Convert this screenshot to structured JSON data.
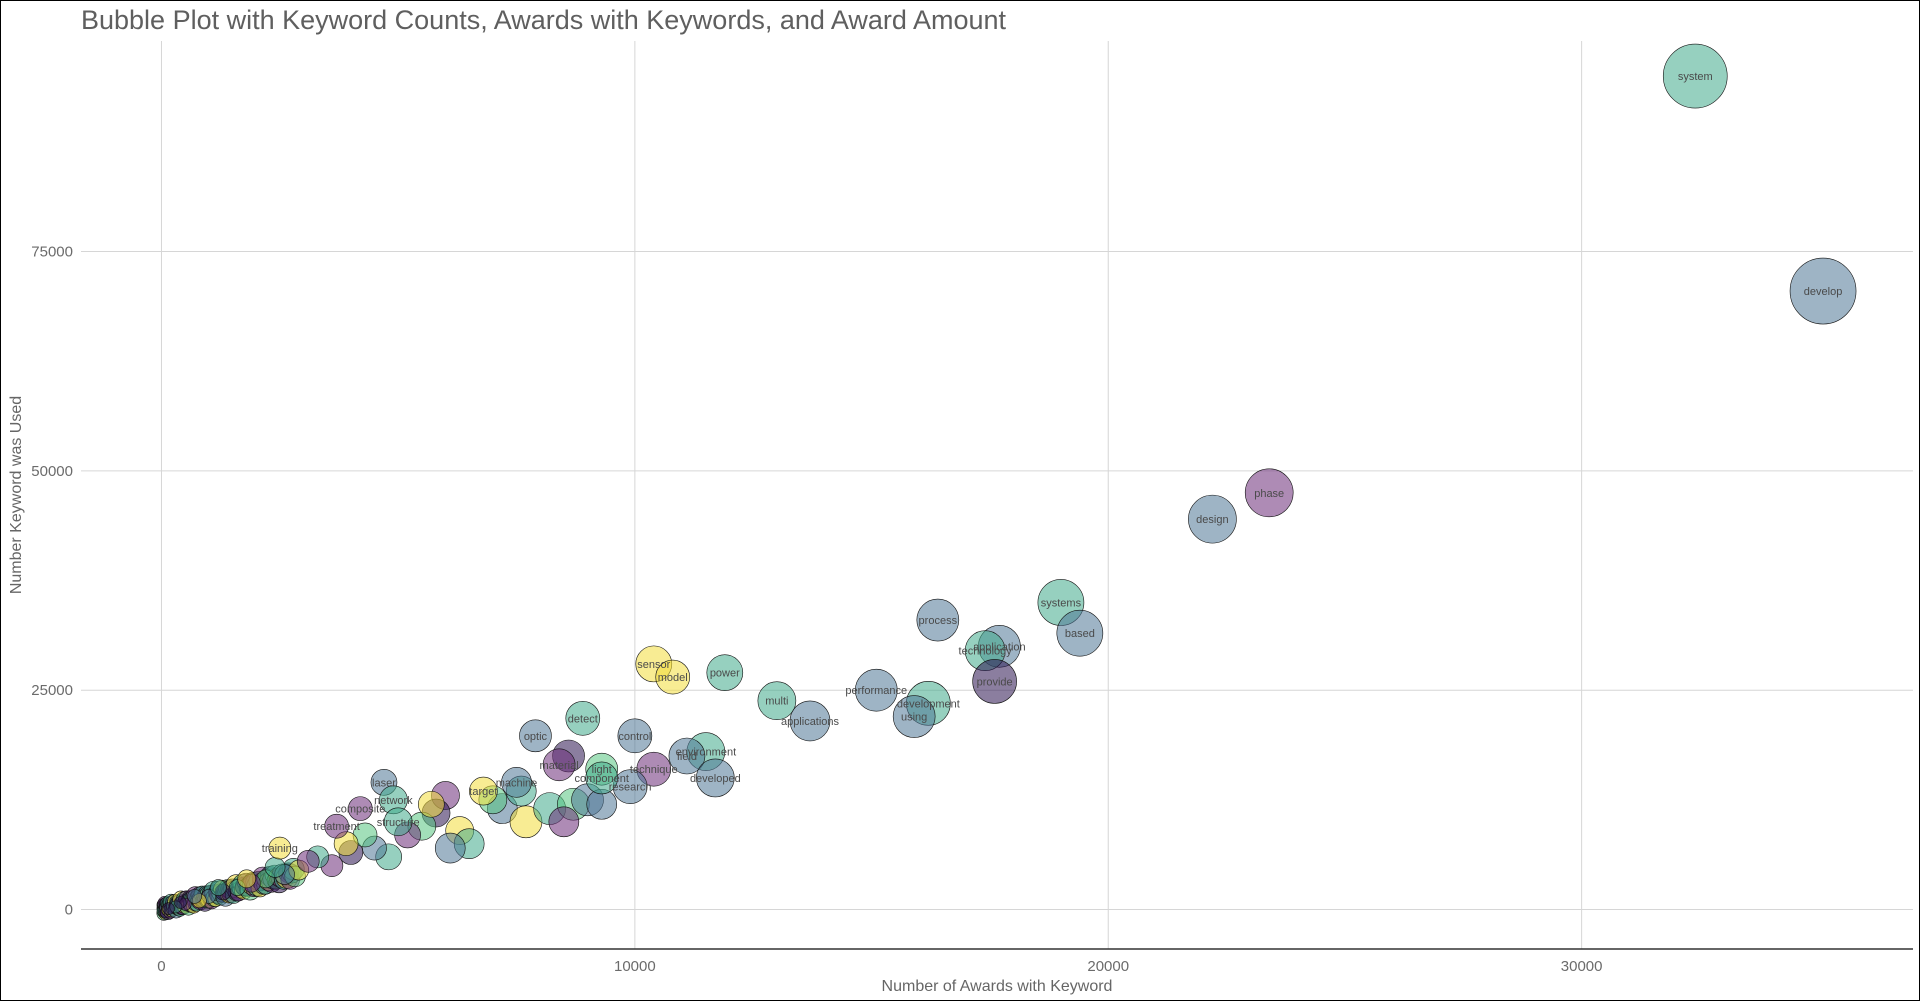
{
  "chart_data": {
    "type": "scatter",
    "title": "Bubble Plot with Keyword Counts, Awards with Keywords, and Award Amount",
    "xlabel": "Number of Awards with Keyword",
    "ylabel": "Number Keyword was Used",
    "xlim": [
      -1700,
      37000
    ],
    "ylim": [
      -4500,
      99000
    ],
    "xticks": [
      0,
      10000,
      20000,
      30000
    ],
    "yticks": [
      0,
      25000,
      50000,
      75000
    ],
    "grid": true,
    "legend": "none",
    "colors": {
      "purple": "#6b2c79",
      "blue": "#4f7695",
      "teal": "#3faa8a",
      "green": "#56c47f",
      "yellow": "#f2dd3b",
      "dark": "#2b1450"
    },
    "labeled_points": [
      {
        "label": "system",
        "x": 32400,
        "y": 95000,
        "size": 32,
        "color": "teal"
      },
      {
        "label": "develop",
        "x": 35100,
        "y": 70500,
        "size": 33,
        "color": "blue"
      },
      {
        "label": "phase",
        "x": 23400,
        "y": 47500,
        "size": 24,
        "color": "purple"
      },
      {
        "label": "design",
        "x": 22200,
        "y": 44500,
        "size": 24,
        "color": "blue"
      },
      {
        "label": "systems",
        "x": 19000,
        "y": 35000,
        "size": 23,
        "color": "teal"
      },
      {
        "label": "based",
        "x": 19400,
        "y": 31500,
        "size": 23,
        "color": "blue"
      },
      {
        "label": "process",
        "x": 16400,
        "y": 33000,
        "size": 21,
        "color": "blue"
      },
      {
        "label": "application",
        "x": 17700,
        "y": 30000,
        "size": 21,
        "color": "blue"
      },
      {
        "label": "technology",
        "x": 17400,
        "y": 29500,
        "size": 20,
        "color": "teal"
      },
      {
        "label": "provide",
        "x": 17600,
        "y": 26000,
        "size": 22,
        "color": "dark"
      },
      {
        "label": "performance",
        "x": 15100,
        "y": 25000,
        "size": 21,
        "color": "blue"
      },
      {
        "label": "development",
        "x": 16200,
        "y": 23500,
        "size": 22,
        "color": "teal"
      },
      {
        "label": "using",
        "x": 15900,
        "y": 22000,
        "size": 21,
        "color": "blue"
      },
      {
        "label": "sensor",
        "x": 10400,
        "y": 28000,
        "size": 18,
        "color": "yellow"
      },
      {
        "label": "model",
        "x": 10800,
        "y": 26500,
        "size": 17,
        "color": "yellow"
      },
      {
        "label": "power",
        "x": 11900,
        "y": 27000,
        "size": 18,
        "color": "teal"
      },
      {
        "label": "multi",
        "x": 13000,
        "y": 23800,
        "size": 19,
        "color": "teal"
      },
      {
        "label": "applications",
        "x": 13700,
        "y": 21500,
        "size": 20,
        "color": "blue"
      },
      {
        "label": "detect",
        "x": 8900,
        "y": 21800,
        "size": 17,
        "color": "teal"
      },
      {
        "label": "optic",
        "x": 7900,
        "y": 19800,
        "size": 16,
        "color": "blue"
      },
      {
        "label": "control",
        "x": 10000,
        "y": 19800,
        "size": 17,
        "color": "blue"
      },
      {
        "label": "environment",
        "x": 11500,
        "y": 18000,
        "size": 19,
        "color": "teal"
      },
      {
        "label": "field",
        "x": 11100,
        "y": 17500,
        "size": 18,
        "color": "blue"
      },
      {
        "label": "developed",
        "x": 11700,
        "y": 15000,
        "size": 19,
        "color": "blue"
      },
      {
        "label": "technique",
        "x": 10400,
        "y": 16000,
        "size": 17,
        "color": "purple"
      },
      {
        "label": "research",
        "x": 9900,
        "y": 14000,
        "size": 17,
        "color": "blue"
      },
      {
        "label": "light",
        "x": 9300,
        "y": 16000,
        "size": 16,
        "color": "green"
      },
      {
        "label": "component",
        "x": 9300,
        "y": 15000,
        "size": 16,
        "color": "teal"
      },
      {
        "label": "material",
        "x": 8400,
        "y": 16500,
        "size": 16,
        "color": "purple"
      },
      {
        "label": "laser",
        "x": 4700,
        "y": 14500,
        "size": 13,
        "color": "blue"
      },
      {
        "label": "network",
        "x": 4900,
        "y": 12500,
        "size": 14,
        "color": "teal"
      },
      {
        "label": "composite",
        "x": 4200,
        "y": 11500,
        "size": 12,
        "color": "purple"
      },
      {
        "label": "target",
        "x": 6800,
        "y": 13500,
        "size": 14,
        "color": "yellow"
      },
      {
        "label": "machine",
        "x": 7500,
        "y": 14500,
        "size": 15,
        "color": "blue"
      },
      {
        "label": "structure",
        "x": 5000,
        "y": 10000,
        "size": 14,
        "color": "teal"
      },
      {
        "label": "treatment",
        "x": 3700,
        "y": 9500,
        "size": 12,
        "color": "purple"
      },
      {
        "label": "training",
        "x": 2500,
        "y": 7000,
        "size": 11,
        "color": "yellow"
      }
    ],
    "unlabeled_points": [
      {
        "x": 8600,
        "y": 17500,
        "size": 16,
        "color": "dark"
      },
      {
        "x": 6000,
        "y": 13000,
        "size": 14,
        "color": "purple"
      },
      {
        "x": 5800,
        "y": 11000,
        "size": 14,
        "color": "dark"
      },
      {
        "x": 7200,
        "y": 11500,
        "size": 15,
        "color": "blue"
      },
      {
        "x": 7700,
        "y": 10000,
        "size": 16,
        "color": "yellow"
      },
      {
        "x": 8200,
        "y": 11500,
        "size": 16,
        "color": "teal"
      },
      {
        "x": 8700,
        "y": 12000,
        "size": 16,
        "color": "green"
      },
      {
        "x": 8500,
        "y": 10000,
        "size": 15,
        "color": "purple"
      },
      {
        "x": 9000,
        "y": 12500,
        "size": 16,
        "color": "blue"
      },
      {
        "x": 6300,
        "y": 9000,
        "size": 14,
        "color": "yellow"
      },
      {
        "x": 6500,
        "y": 7500,
        "size": 15,
        "color": "teal"
      },
      {
        "x": 6100,
        "y": 7000,
        "size": 15,
        "color": "blue"
      },
      {
        "x": 5500,
        "y": 9500,
        "size": 14,
        "color": "green"
      },
      {
        "x": 5200,
        "y": 8500,
        "size": 13,
        "color": "purple"
      },
      {
        "x": 4800,
        "y": 6000,
        "size": 13,
        "color": "teal"
      },
      {
        "x": 4500,
        "y": 7000,
        "size": 12,
        "color": "blue"
      },
      {
        "x": 4000,
        "y": 6500,
        "size": 12,
        "color": "dark"
      },
      {
        "x": 3600,
        "y": 5000,
        "size": 11,
        "color": "purple"
      },
      {
        "x": 3300,
        "y": 6000,
        "size": 11,
        "color": "teal"
      },
      {
        "x": 2900,
        "y": 4500,
        "size": 10,
        "color": "yellow"
      },
      {
        "x": 2600,
        "y": 4000,
        "size": 10,
        "color": "blue"
      },
      {
        "x": 2200,
        "y": 3500,
        "size": 9,
        "color": "green"
      },
      {
        "x": 1900,
        "y": 3000,
        "size": 9,
        "color": "purple"
      },
      {
        "x": 1600,
        "y": 2500,
        "size": 8,
        "color": "teal"
      },
      {
        "x": 1300,
        "y": 2000,
        "size": 8,
        "color": "dark"
      },
      {
        "x": 1000,
        "y": 1500,
        "size": 7,
        "color": "blue"
      },
      {
        "x": 800,
        "y": 1000,
        "size": 7,
        "color": "yellow"
      },
      {
        "x": 500,
        "y": 600,
        "size": 6,
        "color": "purple"
      },
      {
        "x": 300,
        "y": 300,
        "size": 6,
        "color": "teal"
      },
      {
        "x": 150,
        "y": 100,
        "size": 6,
        "color": "dark"
      },
      {
        "x": 7000,
        "y": 12500,
        "size": 14,
        "color": "green"
      },
      {
        "x": 7600,
        "y": 13500,
        "size": 15,
        "color": "teal"
      },
      {
        "x": 9300,
        "y": 12000,
        "size": 15,
        "color": "blue"
      },
      {
        "x": 5700,
        "y": 12000,
        "size": 13,
        "color": "yellow"
      },
      {
        "x": 4300,
        "y": 8500,
        "size": 12,
        "color": "green"
      },
      {
        "x": 3900,
        "y": 7500,
        "size": 12,
        "color": "yellow"
      },
      {
        "x": 3100,
        "y": 5500,
        "size": 11,
        "color": "purple"
      },
      {
        "x": 2400,
        "y": 4800,
        "size": 10,
        "color": "teal"
      },
      {
        "x": 1800,
        "y": 3500,
        "size": 9,
        "color": "yellow"
      },
      {
        "x": 1200,
        "y": 2500,
        "size": 8,
        "color": "teal"
      },
      {
        "x": 700,
        "y": 1500,
        "size": 7,
        "color": "blue"
      },
      {
        "x": 400,
        "y": 800,
        "size": 6,
        "color": "dark"
      }
    ]
  }
}
